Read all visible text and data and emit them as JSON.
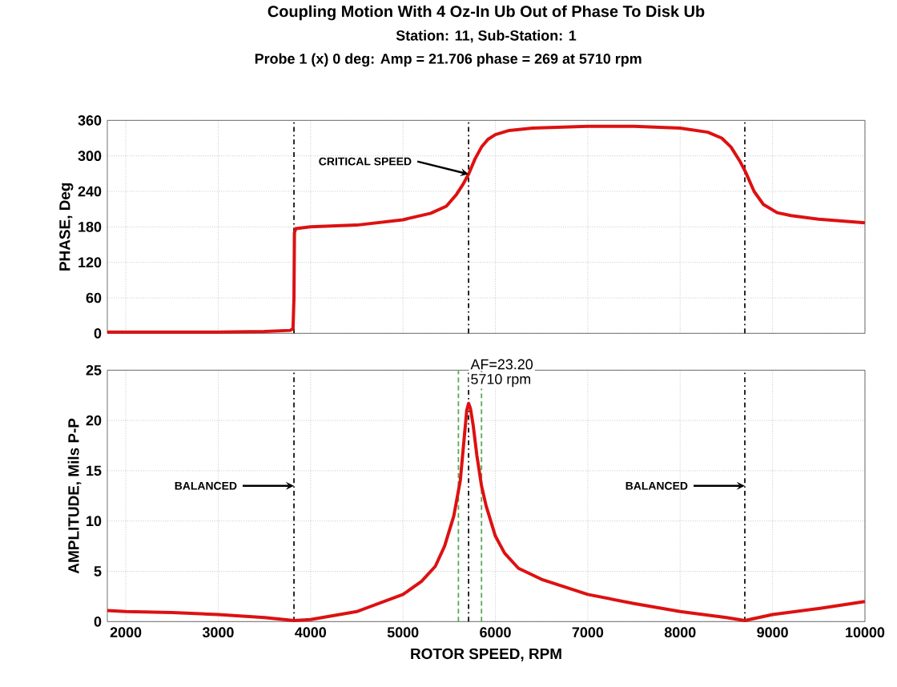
{
  "chart_data": [
    {
      "type": "line",
      "title": "Coupling Motion With 4 Oz-In Ub Out of Phase To Disk Ub",
      "subtitle": "Station: 11, Sub-Station: 1",
      "ylabel": "PHASE, Deg",
      "annotations": [
        "Probe 1 (x)   0 deg: Amp = 21.706 phase = 269 at 5710 rpm",
        {
          "text": "CRITICAL SPEED",
          "x": 5710,
          "y": 269
        }
      ],
      "series": [
        {
          "color": "#dd1111",
          "x": [
            1800,
            2500,
            3000,
            3500,
            3780,
            3810,
            3820,
            3825,
            3840,
            4000,
            4500,
            5000,
            5300,
            5470,
            5580,
            5650,
            5710,
            5780,
            5850,
            5920,
            6000,
            6150,
            6400,
            7000,
            7500,
            8000,
            8300,
            8450,
            8550,
            8650,
            8710,
            8800,
            8900,
            9050,
            9200,
            9500,
            10000
          ],
          "values": [
            2,
            2,
            2,
            3,
            5,
            8,
            60,
            170,
            177,
            180,
            183,
            192,
            203,
            215,
            235,
            252,
            269,
            295,
            315,
            328,
            336,
            343,
            347,
            350,
            350,
            347,
            340,
            330,
            315,
            290,
            272,
            240,
            218,
            204,
            199,
            193,
            187
          ]
        }
      ],
      "xlim": [
        1800,
        10000
      ],
      "xticks": [
        2000,
        3000,
        4000,
        5000,
        6000,
        7000,
        8000,
        9000,
        10000
      ],
      "ylim": [
        0,
        360
      ],
      "yticks": [
        0,
        60,
        120,
        180,
        240,
        300,
        360
      ],
      "tick_labels": "y",
      "grid": true,
      "ref_lines": [
        {
          "axis": "x",
          "value": 3820,
          "color": "#111111",
          "line_style": "dashdot"
        },
        {
          "axis": "x",
          "value": 5710,
          "color": "#111111",
          "line_style": "dashdot"
        },
        {
          "axis": "x",
          "value": 8700,
          "color": "#111111",
          "line_style": "dashdot"
        }
      ]
    },
    {
      "type": "line",
      "xlabel": "ROTOR SPEED, RPM",
      "ylabel": "AMPLITUDE, Mils P-P",
      "annotations": [
        {
          "text": "AF=23.20",
          "x": 5710,
          "y": 21.706
        },
        {
          "text": "5710 rpm",
          "x": 5710,
          "y": 21.706
        },
        {
          "text": "BALANCED",
          "x": 3820,
          "y": 13.5
        },
        {
          "text": "BALANCED",
          "x": 8700,
          "y": 13.5
        }
      ],
      "series": [
        {
          "color": "#dd1111",
          "x": [
            1800,
            2000,
            2500,
            3000,
            3500,
            3820,
            4000,
            4500,
            5000,
            5200,
            5350,
            5450,
            5550,
            5620,
            5660,
            5690,
            5710,
            5730,
            5760,
            5800,
            5850,
            5900,
            6000,
            6100,
            6250,
            6500,
            7000,
            7500,
            8000,
            8500,
            8700,
            9000,
            9500,
            10000
          ],
          "values": [
            1.1,
            1.0,
            0.9,
            0.7,
            0.4,
            0.1,
            0.2,
            1.0,
            2.7,
            4.0,
            5.5,
            7.5,
            10.5,
            14,
            18,
            21,
            21.706,
            21.2,
            19.5,
            16.5,
            13.5,
            11.5,
            8.5,
            6.8,
            5.3,
            4.2,
            2.7,
            1.8,
            1.0,
            0.4,
            0.1,
            0.7,
            1.3,
            2.0
          ]
        }
      ],
      "xlim": [
        1800,
        10000
      ],
      "xticks": [
        2000,
        3000,
        4000,
        5000,
        6000,
        7000,
        8000,
        9000,
        10000
      ],
      "ylim": [
        0,
        25
      ],
      "yticks": [
        0,
        5,
        10,
        15,
        20,
        25
      ],
      "grid": true,
      "ref_lines": [
        {
          "axis": "x",
          "value": 3820,
          "color": "#111111",
          "line_style": "dashdot"
        },
        {
          "axis": "x",
          "value": 5710,
          "color": "#111111",
          "line_style": "dashdot"
        },
        {
          "axis": "x",
          "value": 8700,
          "color": "#111111",
          "line_style": "dashdot"
        },
        {
          "axis": "x",
          "value": 5600,
          "color": "#55aa55",
          "line_style": "dashed"
        },
        {
          "axis": "x",
          "value": 5850,
          "color": "#55aa55",
          "line_style": "dashed"
        }
      ]
    }
  ]
}
